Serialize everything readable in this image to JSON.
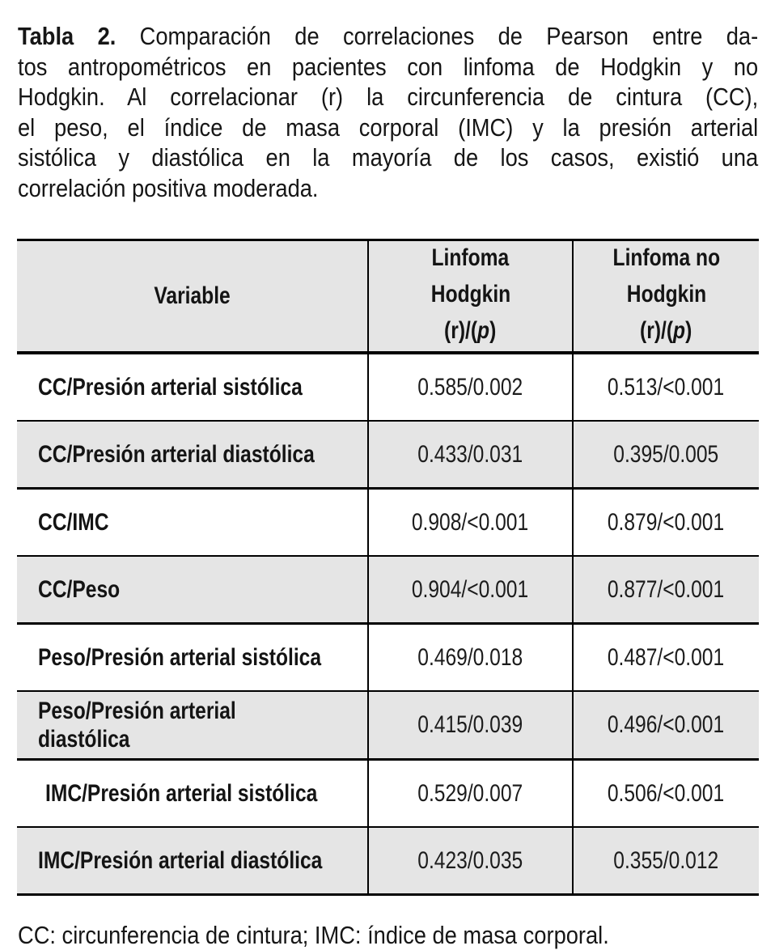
{
  "caption": {
    "label_bold": "Tabla 2.",
    "line1_rest": " Comparación de correlaciones de Pearson entre da-",
    "lines": [
      "tos antropométricos en pacientes con linfoma de Hodgkin y no",
      "Hodgkin. Al correlacionar (r) la circunferencia de cintura (CC),",
      "el peso, el índice de masa corporal (IMC) y la presión arterial",
      "sistólica y diastólica en la mayoría de los casos, existió una",
      "correlación positiva moderada."
    ]
  },
  "table": {
    "shade_color": "#e5e5e5",
    "border_color": "#000000",
    "header": {
      "variable": "Variable",
      "hodgkin_line1": "Linfoma",
      "hodgkin_line2": "Hodgkin",
      "no_hodgkin_line1": "Linfoma no",
      "no_hodgkin_line2": "Hodgkin",
      "stat_prefix": "(r)/(",
      "stat_p": "p",
      "stat_suffix": ")"
    },
    "rows": [
      {
        "variable": "CC/Presión arterial sistólica",
        "hodgkin": "0.585/0.002",
        "no_hodgkin": "0.513/<0.001"
      },
      {
        "variable": "CC/Presión arterial diastólica",
        "hodgkin": "0.433/0.031",
        "no_hodgkin": "0.395/0.005"
      },
      {
        "variable": "CC/IMC",
        "hodgkin": "0.908/<0.001",
        "no_hodgkin": "0.879/<0.001"
      },
      {
        "variable": "CC/Peso",
        "hodgkin": "0.904/<0.001",
        "no_hodgkin": "0.877/<0.001"
      },
      {
        "variable": "Peso/Presión arterial sistólica",
        "hodgkin": "0.469/0.018",
        "no_hodgkin": "0.487/<0.001"
      },
      {
        "variable": "Peso/Presión arterial diastólica",
        "hodgkin": "0.415/0.039",
        "no_hodgkin": "0.496/<0.001"
      },
      {
        "variable": "IMC/Presión arterial sistólica",
        "hodgkin": "0.529/0.007",
        "no_hodgkin": "0.506/<0.001"
      },
      {
        "variable": "IMC/Presión arterial diastólica",
        "hodgkin": "0.423/0.035",
        "no_hodgkin": "0.355/0.012"
      }
    ]
  },
  "footnote": "CC: circunferencia de cintura; IMC: índice de masa corporal."
}
